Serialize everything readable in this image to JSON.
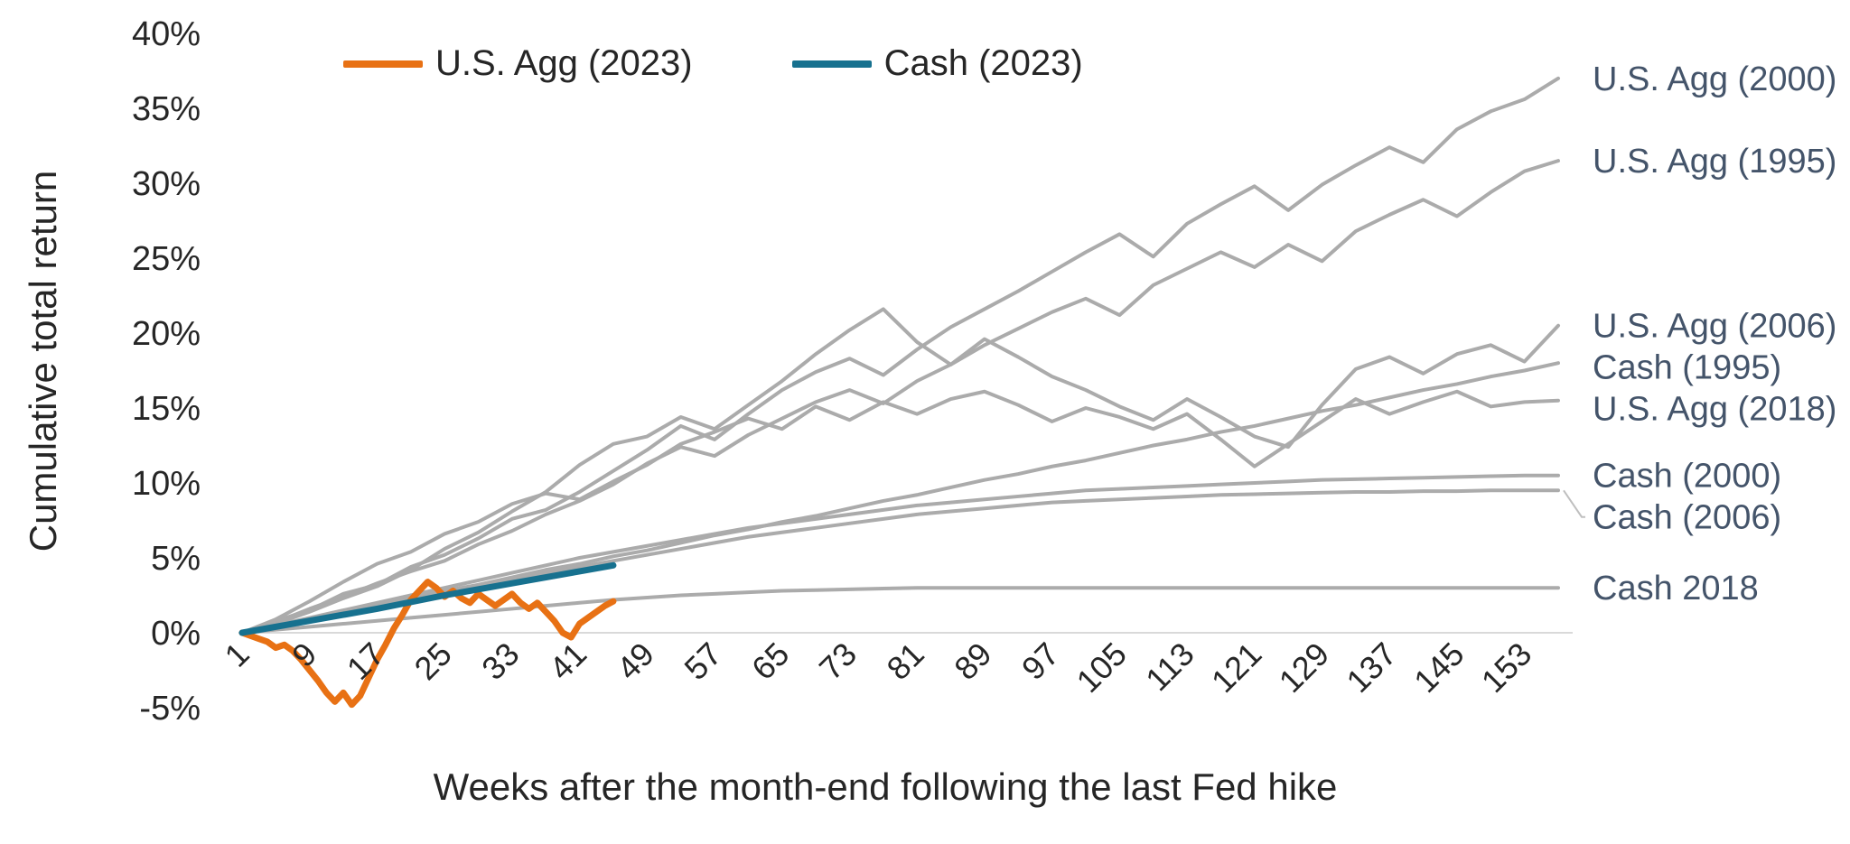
{
  "chart_data": {
    "type": "line",
    "title": "",
    "xlabel": "Weeks after the month-end following the last Fed hike",
    "ylabel": "Cumulative total return",
    "xlim": [
      1,
      157
    ],
    "ylim": [
      -5,
      40
    ],
    "grid": false,
    "legend_position": "top",
    "axis_colors": {
      "tick_text": "#262626",
      "right_label_text": "#44546A",
      "zero_line": "#D9D9D9",
      "leader_line": "#BFBFBF"
    },
    "legend": [
      {
        "label": "U.S. Agg (2023)",
        "color": "#E87114"
      },
      {
        "label": "Cash (2023)",
        "color": "#17718F"
      }
    ],
    "y_ticks": [
      {
        "value": 40,
        "label": "40%"
      },
      {
        "value": 35,
        "label": "35%"
      },
      {
        "value": 30,
        "label": "30%"
      },
      {
        "value": 25,
        "label": "25%"
      },
      {
        "value": 20,
        "label": "20%"
      },
      {
        "value": 15,
        "label": "15%"
      },
      {
        "value": 10,
        "label": "10%"
      },
      {
        "value": 5,
        "label": "5%"
      },
      {
        "value": 0,
        "label": "0%"
      },
      {
        "value": -5,
        "label": "-5%"
      }
    ],
    "x_ticks": [
      1,
      9,
      17,
      25,
      33,
      41,
      49,
      57,
      65,
      73,
      81,
      89,
      97,
      105,
      113,
      121,
      129,
      137,
      145,
      153
    ],
    "series": [
      {
        "name": "U.S. Agg (2000)",
        "color": "#ABABAB",
        "width": 4,
        "label_right": true,
        "x": [
          1,
          5,
          9,
          13,
          17,
          21,
          25,
          29,
          33,
          37,
          41,
          45,
          49,
          53,
          57,
          61,
          65,
          69,
          73,
          77,
          81,
          85,
          89,
          93,
          97,
          101,
          105,
          109,
          113,
          117,
          121,
          125,
          129,
          133,
          137,
          141,
          145,
          149,
          153,
          157
        ],
        "y": [
          0,
          0.8,
          1.5,
          2.6,
          3.2,
          4.4,
          5.2,
          6.3,
          7.6,
          8.2,
          9.4,
          10.8,
          12.2,
          13.8,
          12.9,
          14.6,
          16.2,
          17.4,
          18.3,
          17.2,
          18.9,
          20.4,
          21.6,
          22.8,
          24.1,
          25.4,
          26.6,
          25.1,
          27.3,
          28.6,
          29.8,
          28.2,
          29.9,
          31.2,
          32.4,
          31.4,
          33.6,
          34.8,
          35.6,
          37.0
        ]
      },
      {
        "name": "U.S. Agg (1995)",
        "color": "#ABABAB",
        "width": 4,
        "label_right": true,
        "x": [
          1,
          5,
          9,
          13,
          17,
          21,
          25,
          29,
          33,
          37,
          41,
          45,
          49,
          53,
          57,
          61,
          65,
          69,
          73,
          77,
          81,
          85,
          89,
          93,
          97,
          101,
          105,
          109,
          113,
          117,
          121,
          125,
          129,
          133,
          137,
          141,
          145,
          149,
          153,
          157
        ],
        "y": [
          0,
          0.7,
          1.6,
          2.4,
          3.3,
          4.1,
          4.8,
          5.9,
          6.8,
          7.9,
          8.8,
          9.9,
          11.3,
          12.4,
          11.8,
          13.2,
          14.3,
          15.4,
          16.2,
          15.3,
          16.8,
          17.9,
          19.2,
          20.3,
          21.4,
          22.3,
          21.2,
          23.2,
          24.3,
          25.4,
          24.4,
          25.9,
          24.8,
          26.8,
          27.9,
          28.9,
          27.8,
          29.4,
          30.8,
          31.5
        ]
      },
      {
        "name": "U.S. Agg (2006)",
        "color": "#ABABAB",
        "width": 4,
        "label_right": true,
        "x": [
          1,
          5,
          9,
          13,
          17,
          21,
          25,
          29,
          33,
          37,
          41,
          45,
          49,
          53,
          57,
          61,
          65,
          69,
          73,
          77,
          81,
          85,
          89,
          93,
          97,
          101,
          105,
          109,
          113,
          117,
          121,
          125,
          129,
          133,
          137,
          141,
          145,
          149,
          153,
          157
        ],
        "y": [
          0,
          0.6,
          1.4,
          2.3,
          3.1,
          4.2,
          5.6,
          6.7,
          8.1,
          9.4,
          11.2,
          12.6,
          13.1,
          14.4,
          13.6,
          15.2,
          16.8,
          18.6,
          20.2,
          21.6,
          19.4,
          17.9,
          19.6,
          18.4,
          17.1,
          16.2,
          15.1,
          14.2,
          15.6,
          14.4,
          13.1,
          12.4,
          15.2,
          17.6,
          18.4,
          17.3,
          18.6,
          19.2,
          18.1,
          20.5
        ]
      },
      {
        "name": "U.S. Agg (2018)",
        "color": "#ABABAB",
        "width": 4,
        "label_right": true,
        "x": [
          1,
          5,
          9,
          13,
          17,
          21,
          25,
          29,
          33,
          37,
          41,
          45,
          49,
          53,
          57,
          61,
          65,
          69,
          73,
          77,
          81,
          85,
          89,
          93,
          97,
          101,
          105,
          109,
          113,
          117,
          121,
          125,
          129,
          133,
          137,
          141,
          145,
          149,
          153,
          157
        ],
        "y": [
          0,
          0.9,
          2.1,
          3.4,
          4.6,
          5.4,
          6.6,
          7.4,
          8.6,
          9.3,
          8.9,
          10.1,
          11.2,
          12.6,
          13.4,
          14.3,
          13.6,
          15.1,
          14.2,
          15.4,
          14.6,
          15.6,
          16.1,
          15.2,
          14.1,
          15.0,
          14.4,
          13.6,
          14.6,
          12.9,
          11.1,
          12.6,
          14.1,
          15.6,
          14.6,
          15.4,
          16.1,
          15.1,
          15.4,
          15.5
        ]
      },
      {
        "name": "Cash (1995)",
        "color": "#ABABAB",
        "width": 4,
        "label_right": true,
        "x": [
          1,
          5,
          9,
          13,
          17,
          21,
          25,
          29,
          33,
          37,
          41,
          45,
          49,
          53,
          57,
          61,
          65,
          69,
          73,
          77,
          81,
          85,
          89,
          93,
          97,
          101,
          105,
          109,
          113,
          117,
          121,
          125,
          129,
          133,
          137,
          141,
          145,
          149,
          153,
          157
        ],
        "y": [
          0,
          0.5,
          0.9,
          1.4,
          1.8,
          2.3,
          2.8,
          3.2,
          3.7,
          4.2,
          4.6,
          5.1,
          5.5,
          6.0,
          6.5,
          6.9,
          7.4,
          7.8,
          8.3,
          8.8,
          9.2,
          9.7,
          10.2,
          10.6,
          11.1,
          11.5,
          12.0,
          12.5,
          12.9,
          13.4,
          13.8,
          14.3,
          14.8,
          15.2,
          15.7,
          16.2,
          16.6,
          17.1,
          17.5,
          18.0
        ]
      },
      {
        "name": "Cash (2000)",
        "color": "#ABABAB",
        "width": 4,
        "label_right": true,
        "x": [
          1,
          5,
          9,
          13,
          17,
          21,
          25,
          29,
          33,
          37,
          41,
          45,
          49,
          53,
          57,
          61,
          65,
          69,
          73,
          77,
          81,
          85,
          89,
          93,
          97,
          101,
          105,
          109,
          113,
          117,
          121,
          125,
          129,
          133,
          137,
          141,
          145,
          149,
          153,
          157
        ],
        "y": [
          0,
          0.5,
          1.0,
          1.5,
          2.0,
          2.5,
          3.0,
          3.5,
          4.0,
          4.5,
          5.0,
          5.4,
          5.8,
          6.2,
          6.6,
          7.0,
          7.3,
          7.6,
          7.9,
          8.2,
          8.5,
          8.7,
          8.9,
          9.1,
          9.3,
          9.5,
          9.6,
          9.7,
          9.8,
          9.9,
          10.0,
          10.1,
          10.2,
          10.25,
          10.3,
          10.35,
          10.4,
          10.45,
          10.5,
          10.5
        ]
      },
      {
        "name": "Cash (2006)",
        "color": "#ABABAB",
        "width": 4,
        "label_right": true,
        "x": [
          1,
          5,
          9,
          13,
          17,
          21,
          25,
          29,
          33,
          37,
          41,
          45,
          49,
          53,
          57,
          61,
          65,
          69,
          73,
          77,
          81,
          85,
          89,
          93,
          97,
          101,
          105,
          109,
          113,
          117,
          121,
          125,
          129,
          133,
          137,
          141,
          145,
          149,
          153,
          157
        ],
        "y": [
          0,
          0.4,
          0.9,
          1.3,
          1.8,
          2.2,
          2.7,
          3.1,
          3.6,
          4.0,
          4.4,
          4.8,
          5.2,
          5.6,
          6.0,
          6.4,
          6.7,
          7.0,
          7.3,
          7.6,
          7.9,
          8.1,
          8.3,
          8.5,
          8.7,
          8.8,
          8.9,
          9.0,
          9.1,
          9.2,
          9.25,
          9.3,
          9.35,
          9.4,
          9.4,
          9.45,
          9.45,
          9.5,
          9.5,
          9.5
        ]
      },
      {
        "name": "Cash 2018",
        "color": "#ABABAB",
        "width": 4,
        "label_right": true,
        "x": [
          1,
          5,
          9,
          13,
          17,
          21,
          25,
          29,
          33,
          37,
          41,
          45,
          49,
          53,
          57,
          61,
          65,
          69,
          73,
          77,
          81,
          85,
          89,
          93,
          97,
          101,
          105,
          109,
          113,
          117,
          121,
          125,
          129,
          133,
          137,
          141,
          145,
          149,
          153,
          157
        ],
        "y": [
          0,
          0.2,
          0.4,
          0.6,
          0.8,
          1.0,
          1.2,
          1.4,
          1.6,
          1.8,
          2.0,
          2.2,
          2.35,
          2.5,
          2.6,
          2.7,
          2.8,
          2.85,
          2.9,
          2.95,
          3.0,
          3.0,
          3.0,
          3.0,
          3.0,
          3.0,
          3.0,
          3.0,
          3.0,
          3.0,
          3.0,
          3.0,
          3.0,
          3.0,
          3.0,
          3.0,
          3.0,
          3.0,
          3.0,
          3.0
        ]
      },
      {
        "name": "U.S. Agg (2023)",
        "color": "#E87114",
        "width": 7,
        "label_right": false,
        "x": [
          1,
          2,
          3,
          4,
          5,
          6,
          7,
          8,
          9,
          10,
          11,
          12,
          13,
          14,
          15,
          16,
          17,
          18,
          19,
          20,
          21,
          22,
          23,
          24,
          25,
          26,
          27,
          28,
          29,
          30,
          31,
          32,
          33,
          34,
          35,
          36,
          37,
          38,
          39,
          40,
          41,
          42,
          43,
          44,
          45
        ],
        "y": [
          0,
          -0.2,
          -0.4,
          -0.6,
          -1.0,
          -0.8,
          -1.2,
          -1.8,
          -2.5,
          -3.2,
          -4.0,
          -4.6,
          -4.0,
          -4.8,
          -4.2,
          -3.0,
          -1.8,
          -0.8,
          0.3,
          1.2,
          2.2,
          2.8,
          3.4,
          3.0,
          2.4,
          2.8,
          2.3,
          2.0,
          2.6,
          2.2,
          1.8,
          2.2,
          2.6,
          2.0,
          1.6,
          2.0,
          1.4,
          0.8,
          0.0,
          -0.3,
          0.6,
          1.0,
          1.4,
          1.8,
          2.1
        ]
      },
      {
        "name": "Cash (2023)",
        "color": "#17718F",
        "width": 7,
        "label_right": false,
        "x": [
          1,
          9,
          17,
          25,
          33,
          41,
          45
        ],
        "y": [
          0,
          0.8,
          1.6,
          2.5,
          3.3,
          4.1,
          4.5
        ]
      }
    ]
  }
}
